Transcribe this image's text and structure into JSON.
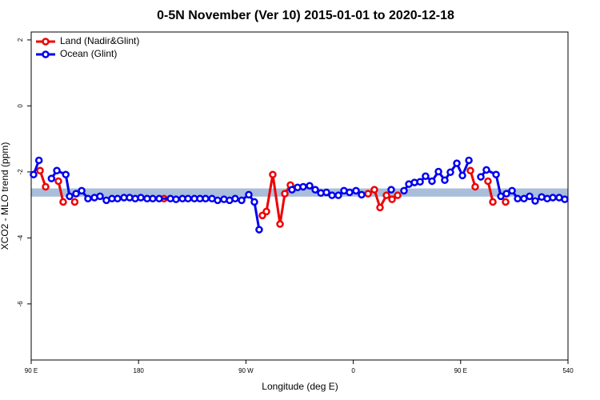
{
  "chart_data": {
    "type": "line",
    "title": "0-5N November (Ver 10)   2015-01-01 to 2020-12-18",
    "x_label": "Longitude (deg E)",
    "y_label": "XCO2 - MLO trend (ppm)",
    "xlim": [
      90,
      540
    ],
    "ylim": [
      -7.7,
      2.24
    ],
    "xticks": [
      {
        "value": 90,
        "label": "90 E"
      },
      180,
      {
        "value": 270,
        "label": "90 W"
      },
      {
        "value": 360,
        "label": "0"
      },
      {
        "value": 450,
        "label": "90 E"
      },
      540
    ],
    "yticks": [
      2,
      0,
      -2,
      -4,
      -6
    ],
    "grid": false,
    "legend": "top-left",
    "band": {
      "range": [
        -2.75,
        -2.5
      ],
      "color": "#a9bedb"
    },
    "series": [
      {
        "name": "Land (Nadir&Glint)",
        "color": "#ee0000",
        "x": [
          97.4,
          102.1,
          null,
          112.8,
          116.8,
          null,
          126.5,
          null,
          201.3,
          null,
          283.8,
          287.2,
          292.5,
          298.6,
          302.6,
          307.3,
          null,
          372.4,
          377.7,
          382.4,
          387.8,
          392.5,
          397.2,
          null,
          458.2,
          462.2,
          null,
          472.9,
          477,
          null,
          487.7
        ],
        "values": [
          -1.96,
          -2.45,
          null,
          -2.28,
          -2.91,
          null,
          -2.91,
          null,
          -2.81,
          null,
          -3.32,
          -3.2,
          -2.08,
          -3.58,
          -2.66,
          -2.4,
          null,
          -2.66,
          -2.54,
          -3.08,
          -2.71,
          -2.83,
          -2.71,
          null,
          -1.96,
          -2.45,
          null,
          -2.28,
          -2.91,
          null,
          -2.91
        ]
      },
      {
        "name": "Ocean (Glint)",
        "color": "#0000ee",
        "x": [
          92,
          96.5,
          null,
          107,
          111.5,
          119,
          122.2,
          127.6,
          132.3,
          137.6,
          143,
          147.7,
          153,
          157.7,
          162.4,
          167.8,
          172.5,
          177.2,
          181.9,
          187.2,
          191.9,
          197.3,
          206.7,
          211.4,
          216.8,
          221.5,
          226.8,
          231.5,
          236.2,
          241.6,
          246.3,
          251.6,
          256.3,
          261,
          266.4,
          272.4,
          277.1,
          281.1,
          null,
          308.6,
          313.3,
          318,
          323.4,
          328.1,
          332.8,
          337.5,
          342.2,
          347.5,
          352.2,
          356.9,
          362.3,
          367,
          null,
          391.8,
          null,
          402.5,
          406.6,
          411.3,
          416,
          420.6,
          426,
          431.4,
          436.7,
          441.4,
          446.8,
          451.5,
          456.9,
          null,
          466.9,
          471.6,
          479.7,
          483.7,
          488.4,
          493.1,
          497.8,
          503.1,
          507.8,
          512.5,
          517.9,
          522.6,
          527.3,
          532.6,
          537.3
        ],
        "values": [
          -2.08,
          -1.65,
          null,
          -2.2,
          -1.96,
          -2.08,
          -2.74,
          -2.66,
          -2.57,
          -2.81,
          -2.78,
          -2.74,
          -2.86,
          -2.81,
          -2.81,
          -2.78,
          -2.78,
          -2.81,
          -2.78,
          -2.81,
          -2.81,
          -2.81,
          -2.81,
          -2.83,
          -2.81,
          -2.81,
          -2.81,
          -2.81,
          -2.81,
          -2.81,
          -2.86,
          -2.83,
          -2.86,
          -2.81,
          -2.86,
          -2.69,
          -2.91,
          -3.75,
          null,
          -2.54,
          -2.47,
          -2.45,
          -2.42,
          -2.54,
          -2.64,
          -2.62,
          -2.71,
          -2.71,
          -2.57,
          -2.62,
          -2.57,
          -2.69,
          null,
          -2.54,
          null,
          -2.57,
          -2.37,
          -2.32,
          -2.3,
          -2.13,
          -2.28,
          -1.99,
          -2.25,
          -2.01,
          -1.74,
          -2.11,
          -1.65,
          null,
          -2.15,
          -1.94,
          -2.08,
          -2.74,
          -2.66,
          -2.57,
          -2.81,
          -2.81,
          -2.74,
          -2.88,
          -2.76,
          -2.81,
          -2.78,
          -2.78,
          -2.83
        ]
      }
    ]
  }
}
